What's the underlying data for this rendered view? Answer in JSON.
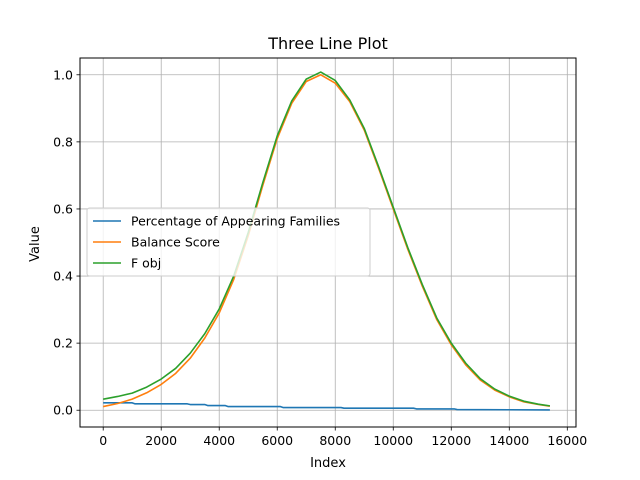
{
  "chart_data": {
    "type": "line",
    "title": "Three Line Plot",
    "xlabel": "Index",
    "ylabel": "Value",
    "xlim": [
      -800,
      16300
    ],
    "ylim": [
      -0.05,
      1.05
    ],
    "xticks": [
      0,
      2000,
      4000,
      6000,
      8000,
      10000,
      12000,
      14000,
      16000
    ],
    "xtick_labels": [
      "0",
      "2000",
      "4000",
      "6000",
      "8000",
      "10000",
      "12000",
      "14000",
      "16000"
    ],
    "yticks": [
      0.0,
      0.2,
      0.4,
      0.6,
      0.8,
      1.0
    ],
    "ytick_labels": [
      "0.0",
      "0.2",
      "0.4",
      "0.6",
      "0.8",
      "1.0"
    ],
    "grid": true,
    "legend_position": "center-left",
    "series": [
      {
        "name": "Percentage of Appearing Families",
        "color": "#1f77b4",
        "x": [
          0,
          1000,
          1100,
          2900,
          3000,
          3500,
          3600,
          4200,
          4300,
          6100,
          6200,
          8200,
          8300,
          10700,
          10800,
          12100,
          12200,
          15400
        ],
        "y": [
          0.022,
          0.022,
          0.019,
          0.019,
          0.017,
          0.017,
          0.014,
          0.014,
          0.011,
          0.011,
          0.008,
          0.008,
          0.006,
          0.006,
          0.004,
          0.004,
          0.002,
          0.001
        ]
      },
      {
        "name": "Balance Score",
        "color": "#ff7f0e",
        "x": [
          0,
          500,
          1000,
          1500,
          2000,
          2500,
          3000,
          3500,
          4000,
          4500,
          5000,
          5500,
          6000,
          6500,
          7000,
          7500,
          8000,
          8500,
          9000,
          9500,
          10000,
          10500,
          11000,
          11500,
          12000,
          12500,
          13000,
          13500,
          14000,
          14500,
          15000,
          15400
        ],
        "y": [
          0.011,
          0.02,
          0.033,
          0.052,
          0.077,
          0.11,
          0.155,
          0.215,
          0.29,
          0.39,
          0.52,
          0.67,
          0.81,
          0.915,
          0.98,
          1.0,
          0.975,
          0.92,
          0.835,
          0.72,
          0.6,
          0.48,
          0.37,
          0.27,
          0.195,
          0.135,
          0.09,
          0.06,
          0.04,
          0.025,
          0.017,
          0.012
        ]
      },
      {
        "name": "F obj",
        "color": "#2ca02c",
        "x": [
          0,
          500,
          1000,
          1500,
          2000,
          2500,
          3000,
          3500,
          4000,
          4500,
          5000,
          5500,
          6000,
          6500,
          7000,
          7500,
          8000,
          8500,
          9000,
          9500,
          10000,
          10500,
          11000,
          11500,
          12000,
          12500,
          13000,
          13500,
          14000,
          14500,
          15000,
          15400
        ],
        "y": [
          0.033,
          0.041,
          0.051,
          0.069,
          0.093,
          0.125,
          0.17,
          0.228,
          0.302,
          0.4,
          0.53,
          0.678,
          0.818,
          0.922,
          0.987,
          1.008,
          0.983,
          0.925,
          0.84,
          0.725,
          0.605,
          0.485,
          0.375,
          0.275,
          0.2,
          0.14,
          0.094,
          0.063,
          0.042,
          0.027,
          0.018,
          0.013
        ]
      }
    ]
  }
}
